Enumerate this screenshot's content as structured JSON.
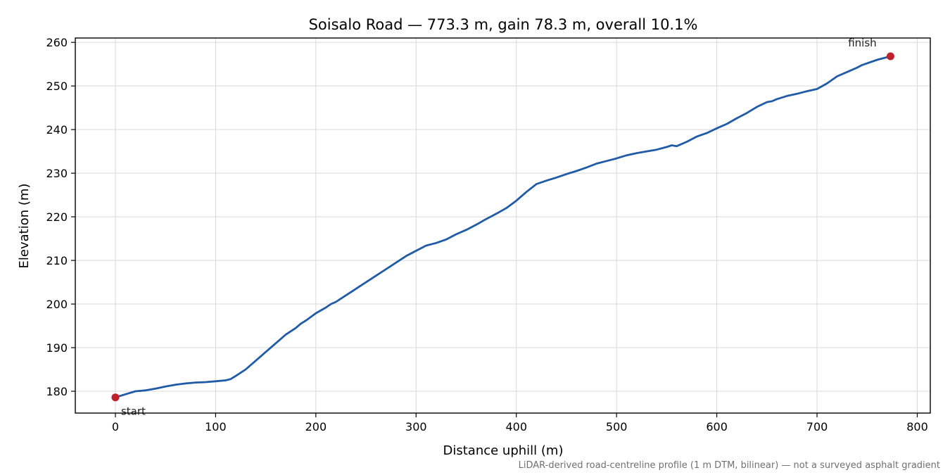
{
  "chart_data": {
    "type": "line",
    "title": "Soisalo Road — 773.3 m, gain 78.3 m, overall 10.1%",
    "xlabel": "Distance uphill (m)",
    "ylabel": "Elevation (m)",
    "xlim": [
      -40,
      813
    ],
    "ylim": [
      175,
      261
    ],
    "xticks": [
      0,
      100,
      200,
      300,
      400,
      500,
      600,
      700,
      800
    ],
    "yticks": [
      180,
      190,
      200,
      210,
      220,
      230,
      240,
      250,
      260
    ],
    "grid": true,
    "footnote": "LiDAR-derived road-centreline profile (1 m DTM, bilinear) — not a surveyed asphalt gradient",
    "annotations": {
      "start": "start",
      "finish": "finish"
    },
    "series": [
      {
        "color": "#1f5ba6",
        "x": [
          0,
          10,
          20,
          30,
          40,
          50,
          60,
          70,
          80,
          90,
          100,
          110,
          115,
          120,
          130,
          140,
          150,
          160,
          170,
          180,
          185,
          190,
          200,
          210,
          215,
          220,
          230,
          240,
          250,
          260,
          270,
          280,
          290,
          300,
          310,
          320,
          330,
          340,
          350,
          360,
          370,
          380,
          390,
          400,
          410,
          420,
          430,
          440,
          450,
          460,
          470,
          480,
          490,
          500,
          510,
          520,
          530,
          540,
          550,
          555,
          560,
          570,
          580,
          590,
          600,
          610,
          620,
          630,
          640,
          650,
          655,
          660,
          670,
          680,
          690,
          700,
          710,
          720,
          730,
          740,
          745,
          750,
          760,
          773.3
        ],
        "y": [
          178.6,
          179.3,
          180.0,
          180.2,
          180.6,
          181.1,
          181.5,
          181.8,
          182.0,
          182.1,
          182.3,
          182.5,
          182.8,
          183.5,
          185.0,
          187.0,
          189.0,
          191.0,
          193.0,
          194.5,
          195.5,
          196.2,
          197.9,
          199.2,
          200.0,
          200.5,
          202.0,
          203.5,
          205.0,
          206.5,
          208.0,
          209.5,
          211.0,
          212.2,
          213.4,
          214.0,
          214.8,
          216.0,
          217.0,
          218.2,
          219.5,
          220.7,
          222.0,
          223.7,
          225.7,
          227.5,
          228.3,
          229.0,
          229.8,
          230.5,
          231.3,
          232.2,
          232.8,
          233.4,
          234.1,
          234.6,
          235.0,
          235.4,
          236.0,
          236.4,
          236.2,
          237.2,
          238.4,
          239.2,
          240.3,
          241.3,
          242.6,
          243.8,
          245.2,
          246.3,
          246.5,
          247.0,
          247.7,
          248.2,
          248.8,
          249.3,
          250.6,
          252.2,
          253.2,
          254.2,
          254.8,
          255.2,
          256.0,
          256.8
        ]
      }
    ]
  }
}
